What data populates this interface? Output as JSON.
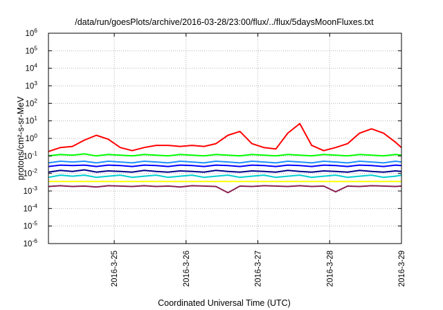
{
  "chart_data": {
    "type": "line",
    "title": "/data/run/goesPlots/archive/2016-03-28/23:00/flux/../flux/5daysMoonFluxes.txt",
    "xlabel": "Coordinated Universal Time (UTC)",
    "ylabel": "protons/cm²-s-sr-MeV",
    "y_scale": "log",
    "ylim": [
      1e-06,
      1000000.0
    ],
    "y_ticks": [
      {
        "value": 1e-06,
        "base": "10",
        "exp": "-6"
      },
      {
        "value": 1e-05,
        "base": "10",
        "exp": "-5"
      },
      {
        "value": 0.0001,
        "base": "10",
        "exp": "-4"
      },
      {
        "value": 0.001,
        "base": "10",
        "exp": "-3"
      },
      {
        "value": 0.01,
        "base": "10",
        "exp": "-2"
      },
      {
        "value": 0.1,
        "base": "10",
        "exp": "-1"
      },
      {
        "value": 1,
        "base": "10",
        "exp": "0"
      },
      {
        "value": 10.0,
        "base": "10",
        "exp": "1"
      },
      {
        "value": 100.0,
        "base": "10",
        "exp": "2"
      },
      {
        "value": 1000.0,
        "base": "10",
        "exp": "3"
      },
      {
        "value": 10000.0,
        "base": "10",
        "exp": "4"
      },
      {
        "value": 100000.0,
        "base": "10",
        "exp": "5"
      },
      {
        "value": 1000000.0,
        "base": "10",
        "exp": "6"
      }
    ],
    "xlim": [
      "2016-03-24 02:00",
      "2016-03-29 00:00"
    ],
    "x_ticks": [
      {
        "value": "2016-03-25 00:00",
        "label": "2016-3-25"
      },
      {
        "value": "2016-03-26 00:00",
        "label": "2016-3-26"
      },
      {
        "value": "2016-03-27 00:00",
        "label": "2016-3-27"
      },
      {
        "value": "2016-03-28 00:00",
        "label": "2016-3-28"
      },
      {
        "value": "2016-03-29 00:00",
        "label": "2016-3-29"
      }
    ],
    "grid": true,
    "x": [
      "2016-03-24 02:00",
      "2016-03-24 06:00",
      "2016-03-24 10:00",
      "2016-03-24 14:00",
      "2016-03-24 18:00",
      "2016-03-24 22:00",
      "2016-03-25 02:00",
      "2016-03-25 06:00",
      "2016-03-25 10:00",
      "2016-03-25 14:00",
      "2016-03-25 18:00",
      "2016-03-25 22:00",
      "2016-03-26 02:00",
      "2016-03-26 06:00",
      "2016-03-26 10:00",
      "2016-03-26 14:00",
      "2016-03-26 18:00",
      "2016-03-26 22:00",
      "2016-03-27 02:00",
      "2016-03-27 06:00",
      "2016-03-27 10:00",
      "2016-03-27 14:00",
      "2016-03-27 18:00",
      "2016-03-27 22:00",
      "2016-03-28 02:00",
      "2016-03-28 06:00",
      "2016-03-28 10:00",
      "2016-03-28 14:00",
      "2016-03-28 18:00",
      "2016-03-28 22:00",
      "2016-03-29 00:00"
    ],
    "series": [
      {
        "color": "#ff0000",
        "values": [
          0.18,
          0.3,
          0.35,
          0.8,
          1.5,
          0.9,
          0.3,
          0.2,
          0.3,
          0.4,
          0.4,
          0.35,
          0.4,
          0.35,
          0.5,
          1.5,
          2.5,
          0.5,
          0.3,
          0.25,
          2.0,
          7.0,
          0.4,
          0.2,
          0.3,
          0.5,
          2.0,
          3.5,
          2.0,
          0.6,
          0.3
        ]
      },
      {
        "color": "#00ff00",
        "values": [
          0.1,
          0.12,
          0.11,
          0.13,
          0.1,
          0.12,
          0.11,
          0.1,
          0.12,
          0.11,
          0.1,
          0.12,
          0.11,
          0.1,
          0.12,
          0.11,
          0.1,
          0.12,
          0.11,
          0.1,
          0.12,
          0.11,
          0.1,
          0.12,
          0.11,
          0.1,
          0.12,
          0.11,
          0.1,
          0.12,
          0.11
        ]
      },
      {
        "color": "#1e90ff",
        "values": [
          0.04,
          0.05,
          0.045,
          0.05,
          0.04,
          0.05,
          0.045,
          0.04,
          0.05,
          0.045,
          0.04,
          0.05,
          0.045,
          0.04,
          0.05,
          0.045,
          0.04,
          0.05,
          0.045,
          0.04,
          0.05,
          0.045,
          0.04,
          0.05,
          0.045,
          0.04,
          0.05,
          0.045,
          0.04,
          0.05,
          0.045
        ]
      },
      {
        "color": "#0000ff",
        "values": [
          0.025,
          0.03,
          0.028,
          0.03,
          0.025,
          0.03,
          0.028,
          0.025,
          0.03,
          0.028,
          0.025,
          0.03,
          0.028,
          0.025,
          0.03,
          0.028,
          0.025,
          0.03,
          0.028,
          0.025,
          0.03,
          0.028,
          0.025,
          0.03,
          0.028,
          0.025,
          0.03,
          0.028,
          0.025,
          0.03,
          0.028
        ]
      },
      {
        "color": "#00008b",
        "values": [
          0.012,
          0.015,
          0.013,
          0.016,
          0.012,
          0.014,
          0.013,
          0.012,
          0.015,
          0.013,
          0.012,
          0.014,
          0.013,
          0.012,
          0.015,
          0.013,
          0.012,
          0.014,
          0.013,
          0.012,
          0.015,
          0.013,
          0.012,
          0.014,
          0.013,
          0.012,
          0.015,
          0.013,
          0.012,
          0.014,
          0.013
        ]
      },
      {
        "color": "#00ced1",
        "values": [
          0.006,
          0.008,
          0.007,
          0.008,
          0.006,
          0.007,
          0.008,
          0.006,
          0.007,
          0.008,
          0.006,
          0.007,
          0.008,
          0.006,
          0.007,
          0.008,
          0.006,
          0.007,
          0.008,
          0.006,
          0.007,
          0.008,
          0.006,
          0.007,
          0.008,
          0.006,
          0.007,
          0.008,
          0.006,
          0.007,
          0.008
        ]
      },
      {
        "color": "#ffff00",
        "values": [
          0.0035,
          0.0035,
          0.0035,
          0.0035,
          0.0035,
          0.0035,
          0.0035,
          0.0035,
          0.0035,
          0.0035,
          0.0035,
          0.0035,
          0.0035,
          0.0035,
          0.0035,
          0.0035,
          0.0035,
          0.0035,
          0.0035,
          0.0035,
          0.0035,
          0.0035,
          0.0035,
          0.0035,
          0.0035,
          0.0035,
          0.0035,
          0.0035,
          0.0035,
          0.0035,
          0.0035
        ]
      },
      {
        "color": "#8b2252",
        "values": [
          0.0018,
          0.002,
          0.0018,
          0.0019,
          0.0017,
          0.002,
          0.0019,
          0.0018,
          0.002,
          0.0018,
          0.0019,
          0.0017,
          0.002,
          0.0019,
          0.0018,
          0.0008,
          0.0019,
          0.0018,
          0.002,
          0.0019,
          0.0018,
          0.002,
          0.0018,
          0.0019,
          0.0009,
          0.0019,
          0.0018,
          0.002,
          0.0019,
          0.0018,
          0.0019
        ]
      }
    ]
  }
}
